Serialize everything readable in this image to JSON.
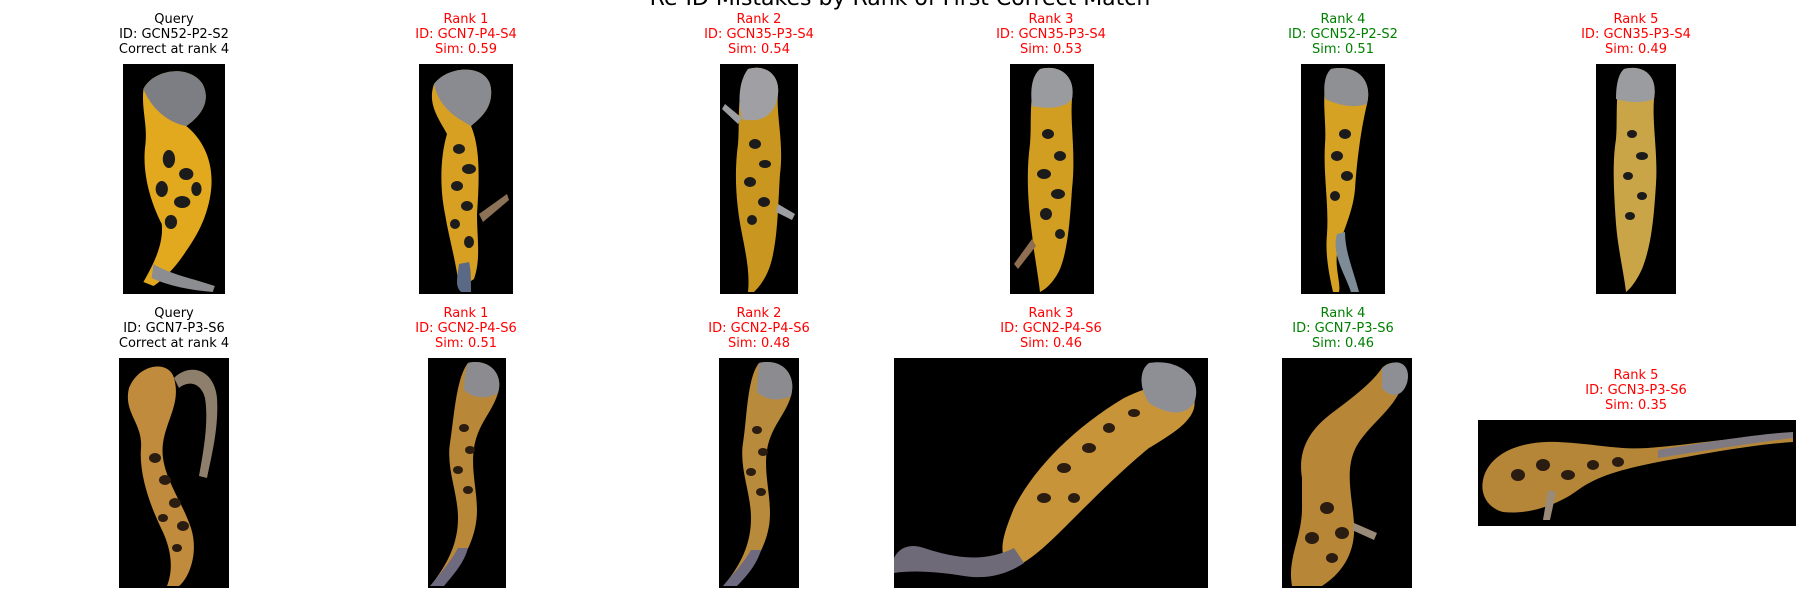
{
  "figure": {
    "title": "Re-ID Mistakes by Rank of First Correct Match"
  },
  "rows": [
    {
      "panels": [
        {
          "lines": [
            "Query",
            "ID: GCN52-P2-S2",
            "Correct at rank 4"
          ],
          "kind": "query"
        },
        {
          "lines": [
            "Rank 1",
            "ID: GCN7-P4-S4",
            "Sim: 0.59"
          ],
          "kind": "wrong"
        },
        {
          "lines": [
            "Rank 2",
            "ID: GCN35-P3-S4",
            "Sim: 0.54"
          ],
          "kind": "wrong"
        },
        {
          "lines": [
            "Rank 3",
            "ID: GCN35-P3-S4",
            "Sim: 0.53"
          ],
          "kind": "wrong"
        },
        {
          "lines": [
            "Rank 4",
            "ID: GCN52-P2-S2",
            "Sim: 0.51"
          ],
          "kind": "right"
        },
        {
          "lines": [
            "Rank 5",
            "ID: GCN35-P3-S4",
            "Sim: 0.49"
          ],
          "kind": "wrong"
        }
      ]
    },
    {
      "panels": [
        {
          "lines": [
            "Query",
            "ID: GCN7-P3-S6",
            "Correct at rank 4"
          ],
          "kind": "query"
        },
        {
          "lines": [
            "Rank 1",
            "ID: GCN2-P4-S6",
            "Sim: 0.51"
          ],
          "kind": "wrong"
        },
        {
          "lines": [
            "Rank 2",
            "ID: GCN2-P4-S6",
            "Sim: 0.48"
          ],
          "kind": "wrong"
        },
        {
          "lines": [
            "Rank 3",
            "ID: GCN2-P4-S6",
            "Sim: 0.46"
          ],
          "kind": "wrong"
        },
        {
          "lines": [
            "Rank 4",
            "ID: GCN7-P3-S6",
            "Sim: 0.46"
          ],
          "kind": "right"
        },
        {
          "lines": [
            "Rank 5",
            "ID: GCN3-P3-S6",
            "Sim: 0.35"
          ],
          "kind": "wrong"
        }
      ]
    }
  ],
  "colors": {
    "query": "#000000",
    "wrong": "#ff0000",
    "right": "#008000",
    "image_bg": "#000000"
  }
}
